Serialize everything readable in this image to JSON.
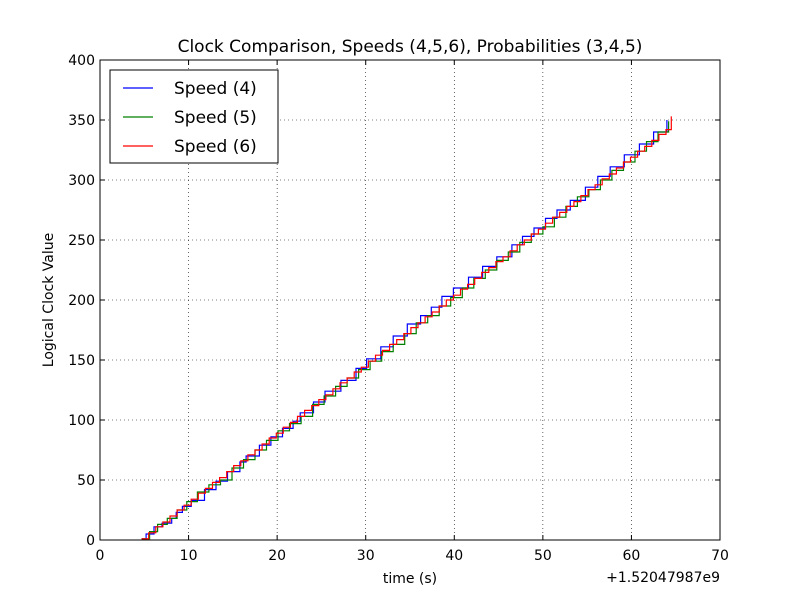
{
  "chart_data": {
    "type": "line",
    "title": "Clock Comparison, Speeds (4,5,6), Probabilities (3,4,5)",
    "xlabel": "time (s)",
    "ylabel": "Logical Clock Value",
    "x_offset_label": "+1.52047987e9",
    "xlim": [
      0,
      70
    ],
    "ylim": [
      0,
      400
    ],
    "xticks": [
      0,
      10,
      20,
      30,
      40,
      50,
      60,
      70
    ],
    "yticks": [
      0,
      50,
      100,
      150,
      200,
      250,
      300,
      350,
      400
    ],
    "grid": true,
    "legend_position": "upper-left",
    "series": [
      {
        "name": "Speed (4)",
        "color": "#0000ff",
        "x": [
          4.7,
          5.2,
          6.1,
          7.0,
          8.1,
          8.6,
          9.3,
          10.3,
          11.8,
          13.1,
          14.4,
          15.8,
          16.5,
          18.0,
          19.3,
          20.6,
          21.8,
          22.6,
          24.1,
          25.4,
          27.2,
          28.9,
          30.1,
          31.7,
          33.1,
          34.7,
          36.2,
          37.4,
          38.6,
          39.9,
          41.6,
          43.2,
          44.8,
          46.5,
          47.7,
          49.0,
          50.3,
          51.6,
          53.1,
          54.8,
          56.2,
          57.6,
          59.2,
          60.9,
          62.5,
          64.0
        ],
        "y": [
          1,
          5,
          11,
          14,
          18,
          23,
          28,
          33,
          42,
          49,
          57,
          65,
          70,
          79,
          86,
          93,
          99,
          106,
          115,
          124,
          133,
          143,
          151,
          161,
          170,
          180,
          187,
          194,
          203,
          210,
          219,
          228,
          236,
          246,
          253,
          260,
          268,
          275,
          283,
          294,
          303,
          311,
          321,
          330,
          340,
          350
        ]
      },
      {
        "name": "Speed (5)",
        "color": "#008000",
        "x": [
          4.7,
          5.6,
          6.5,
          7.6,
          8.7,
          9.8,
          11.0,
          12.3,
          13.6,
          14.9,
          16.2,
          17.5,
          18.8,
          20.1,
          21.4,
          22.7,
          24.0,
          25.3,
          26.6,
          27.9,
          29.2,
          30.5,
          31.8,
          33.1,
          34.4,
          35.7,
          37.0,
          38.3,
          39.6,
          40.9,
          42.2,
          43.5,
          44.8,
          46.1,
          47.4,
          48.7,
          50.0,
          51.3,
          52.6,
          53.9,
          55.2,
          56.5,
          57.8,
          59.1,
          60.4,
          61.7,
          63.0,
          64.2
        ],
        "y": [
          1,
          7,
          13,
          18,
          25,
          32,
          40,
          46,
          50,
          60,
          67,
          75,
          83,
          91,
          97,
          103,
          113,
          120,
          128,
          135,
          142,
          149,
          157,
          163,
          172,
          181,
          187,
          195,
          202,
          210,
          218,
          225,
          233,
          240,
          248,
          255,
          261,
          269,
          278,
          286,
          292,
          300,
          308,
          315,
          324,
          332,
          340,
          349
        ]
      },
      {
        "name": "Speed (6)",
        "color": "#ff0000",
        "x": [
          4.7,
          5.5,
          6.3,
          7.1,
          7.9,
          8.7,
          9.5,
          10.3,
          11.1,
          11.9,
          12.7,
          13.5,
          14.3,
          15.1,
          15.9,
          16.7,
          17.5,
          18.3,
          19.1,
          19.9,
          20.7,
          21.5,
          22.3,
          23.1,
          23.9,
          24.7,
          25.5,
          26.3,
          27.1,
          27.9,
          28.7,
          29.5,
          30.3,
          31.1,
          31.9,
          32.7,
          33.5,
          34.3,
          35.1,
          35.9,
          36.7,
          37.5,
          38.3,
          39.1,
          39.9,
          40.7,
          41.5,
          42.3,
          43.1,
          43.9,
          44.7,
          45.5,
          46.3,
          47.1,
          47.9,
          48.7,
          49.5,
          50.3,
          51.1,
          51.9,
          52.7,
          53.5,
          54.3,
          55.1,
          55.9,
          56.7,
          57.5,
          58.3,
          59.1,
          59.9,
          60.7,
          61.5,
          62.3,
          63.1,
          63.9,
          64.5
        ],
        "y": [
          1,
          6,
          11,
          15,
          20,
          25,
          29,
          34,
          39,
          43,
          48,
          52,
          57,
          62,
          66,
          71,
          75,
          80,
          85,
          89,
          94,
          98,
          103,
          108,
          112,
          117,
          121,
          126,
          131,
          135,
          140,
          144,
          149,
          154,
          158,
          163,
          167,
          172,
          177,
          181,
          186,
          190,
          195,
          200,
          204,
          209,
          213,
          218,
          223,
          227,
          232,
          236,
          241,
          246,
          250,
          255,
          259,
          264,
          269,
          273,
          278,
          282,
          287,
          292,
          296,
          301,
          305,
          310,
          315,
          319,
          324,
          328,
          333,
          338,
          342,
          353
        ]
      }
    ]
  }
}
